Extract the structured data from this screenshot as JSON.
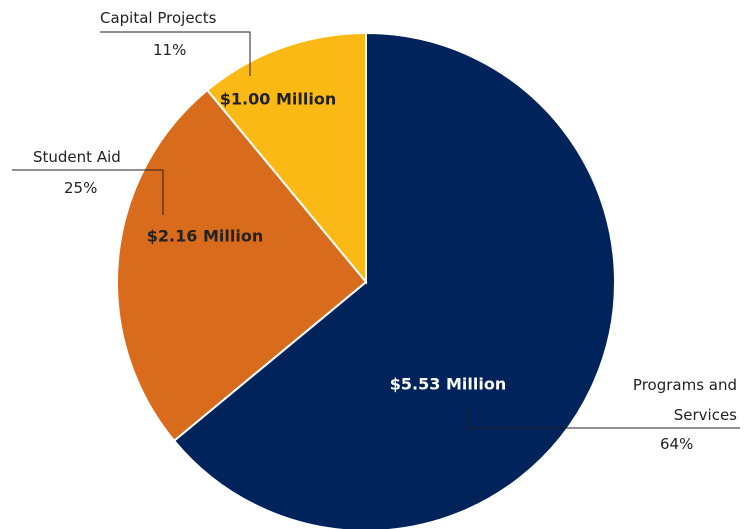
{
  "chart_data": {
    "type": "pie",
    "categories": [
      "Programs and Services",
      "Student Aid",
      "Capital Projects"
    ],
    "values": [
      64,
      25,
      11
    ],
    "value_labels": [
      "64%",
      "25%",
      "11%"
    ],
    "amount_labels": [
      "$5.53 Million",
      "$2.16 Million",
      "$1.00 Million"
    ],
    "colors": [
      "#00235b",
      "#d96c1c",
      "#fbb916"
    ]
  }
}
